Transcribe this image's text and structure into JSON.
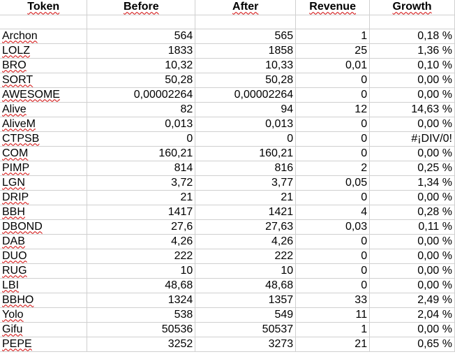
{
  "headers": [
    "Token",
    "Before",
    "After",
    "Revenue",
    "Growth"
  ],
  "rows": [
    {
      "token": "Archon",
      "before": "564",
      "after": "565",
      "revenue": "1",
      "growth": "0,18 %"
    },
    {
      "token": "LOLZ",
      "before": "1833",
      "after": "1858",
      "revenue": "25",
      "growth": "1,36 %"
    },
    {
      "token": "BRO",
      "before": "10,32",
      "after": "10,33",
      "revenue": "0,01",
      "growth": "0,10 %"
    },
    {
      "token": "SORT",
      "before": "50,28",
      "after": "50,28",
      "revenue": "0",
      "growth": "0,00 %"
    },
    {
      "token": "AWESOME",
      "before": "0,00002264",
      "after": "0,00002264",
      "revenue": "0",
      "growth": "0,00 %"
    },
    {
      "token": "Alive",
      "before": "82",
      "after": "94",
      "revenue": "12",
      "growth": "14,63 %"
    },
    {
      "token": "AliveM",
      "before": "0,013",
      "after": "0,013",
      "revenue": "0",
      "growth": "0,00 %"
    },
    {
      "token": "CTPSB",
      "before": "0",
      "after": "0",
      "revenue": "0",
      "growth": "#¡DIV/0!"
    },
    {
      "token": "COM",
      "before": "160,21",
      "after": "160,21",
      "revenue": "0",
      "growth": "0,00 %"
    },
    {
      "token": "PIMP",
      "before": "814",
      "after": "816",
      "revenue": "2",
      "growth": "0,25 %"
    },
    {
      "token": "LGN",
      "before": "3,72",
      "after": "3,77",
      "revenue": "0,05",
      "growth": "1,34 %"
    },
    {
      "token": "DRIP",
      "before": "21",
      "after": "21",
      "revenue": "0",
      "growth": "0,00 %"
    },
    {
      "token": "BBH",
      "before": "1417",
      "after": "1421",
      "revenue": "4",
      "growth": "0,28 %"
    },
    {
      "token": "DBOND",
      "before": "27,6",
      "after": "27,63",
      "revenue": "0,03",
      "growth": "0,11 %"
    },
    {
      "token": "DAB",
      "before": "4,26",
      "after": "4,26",
      "revenue": "0",
      "growth": "0,00 %"
    },
    {
      "token": "DUO",
      "before": "222",
      "after": "222",
      "revenue": "0",
      "growth": "0,00 %"
    },
    {
      "token": "RUG",
      "before": "10",
      "after": "10",
      "revenue": "0",
      "growth": "0,00 %"
    },
    {
      "token": "LBI",
      "before": "48,68",
      "after": "48,68",
      "revenue": "0",
      "growth": "0,00 %"
    },
    {
      "token": "BBHO",
      "before": "1324",
      "after": "1357",
      "revenue": "33",
      "growth": "2,49 %"
    },
    {
      "token": "Yolo",
      "before": "538",
      "after": "549",
      "revenue": "11",
      "growth": "2,04 %"
    },
    {
      "token": "Gifu",
      "before": "50536",
      "after": "50537",
      "revenue": "1",
      "growth": "0,00 %"
    },
    {
      "token": "PEPE",
      "before": "3252",
      "after": "3273",
      "revenue": "21",
      "growth": "0,65 %"
    }
  ]
}
